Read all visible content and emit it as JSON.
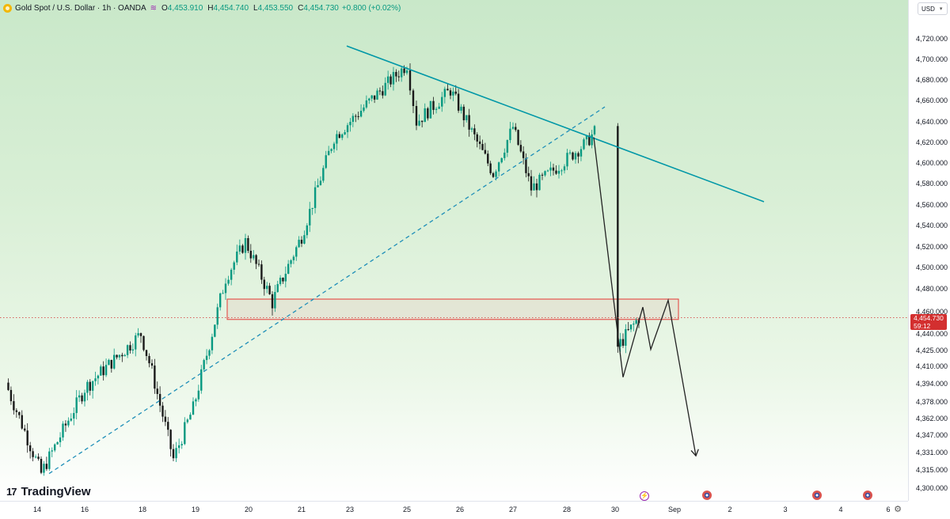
{
  "header": {
    "symbol": "Gold Spot / U.S. Dollar · 1h · OANDA",
    "wave_icon": "≋",
    "open_label": "O",
    "open": "4,453.910",
    "high_label": "H",
    "high": "4,454.740",
    "low_label": "L",
    "low": "4,453.550",
    "close_label": "C",
    "close": "4,454.730",
    "change": "+0.800 (+0.02%)"
  },
  "currency_button": {
    "label": "USD",
    "icon": "chevron-down-icon"
  },
  "price_tag": {
    "price": "4,454.730",
    "countdown": "59:12"
  },
  "logo": {
    "mark": "17",
    "text": "TradingView"
  },
  "colors": {
    "up_candle": "#089981",
    "down_candle": "#1a1a1a",
    "trendline": "#0097a7",
    "dashed_trendline": "#1f8fb8",
    "zone": "#e53935",
    "current_price": "#d32f2f",
    "projection": "#222222"
  },
  "axes": {
    "price_ticks": [
      "4,720.000",
      "4,700.000",
      "4,680.000",
      "4,660.000",
      "4,640.000",
      "4,620.000",
      "4,600.000",
      "4,580.000",
      "4,560.000",
      "4,540.000",
      "4,520.000",
      "4,500.000",
      "4,480.000",
      "4,460.000",
      "4,440.000",
      "4,425.000",
      "4,410.000",
      "4,394.000",
      "4,378.000",
      "4,362.000",
      "4,347.000",
      "4,331.000",
      "4,315.000",
      "4,300.000"
    ],
    "time_ticks": [
      "14",
      "16",
      "18",
      "19",
      "20",
      "21",
      "23",
      "25",
      "26",
      "27",
      "28",
      "30",
      "Sep",
      "2",
      "3",
      "4",
      "6"
    ]
  },
  "bottom_icons": [
    "bolt-event-icon",
    "us-flag-icon",
    "us-flag-icon",
    "us-flag-icon"
  ],
  "settings_icon": "⚙",
  "chart_data": {
    "type": "candlestick",
    "title": "Gold Spot / U.S. Dollar · 1h · OANDA",
    "x_unit": "date (Aug–Sep)",
    "ylim": [
      4300,
      4730
    ],
    "close_path": [
      {
        "x": "14",
        "y": 4395
      },
      {
        "x": "14",
        "y": 4312
      },
      {
        "x": "16",
        "y": 4390
      },
      {
        "x": "18",
        "y": 4440
      },
      {
        "x": "18",
        "y": 4405
      },
      {
        "x": "19",
        "y": 4325
      },
      {
        "x": "19",
        "y": 4372
      },
      {
        "x": "19",
        "y": 4490
      },
      {
        "x": "20",
        "y": 4525
      },
      {
        "x": "20",
        "y": 4468
      },
      {
        "x": "21",
        "y": 4530
      },
      {
        "x": "23",
        "y": 4625
      },
      {
        "x": "25",
        "y": 4695
      },
      {
        "x": "25",
        "y": 4640
      },
      {
        "x": "26",
        "y": 4670
      },
      {
        "x": "27",
        "y": 4590
      },
      {
        "x": "27",
        "y": 4635
      },
      {
        "x": "28",
        "y": 4575
      },
      {
        "x": "28",
        "y": 4620
      },
      {
        "x": "28",
        "y": 4630
      },
      {
        "x": "29",
        "y": 4460
      },
      {
        "x": "30",
        "y": 4425
      },
      {
        "x": "30",
        "y": 4454.73
      }
    ],
    "current_price": 4454.73,
    "resistance_trendline": [
      {
        "x": "23",
        "y": 4713
      },
      {
        "x": "2",
        "y": 4563
      }
    ],
    "support_trendline_dashed": [
      {
        "x": "14",
        "y": 4312
      },
      {
        "x": "30",
        "y": 4654
      }
    ],
    "supply_demand_zone": {
      "y_low": 4453,
      "y_high": 4471,
      "x_start": "19",
      "x_end": "Sep"
    },
    "projection_path": [
      {
        "x": "28",
        "y": 4625
      },
      {
        "x": "30",
        "y": 4400
      },
      {
        "x": "30",
        "y": 4464
      },
      {
        "x": "30",
        "y": 4426
      },
      {
        "x": "Sep",
        "y": 4470
      },
      {
        "x": "Sep",
        "y": 4328
      }
    ]
  }
}
